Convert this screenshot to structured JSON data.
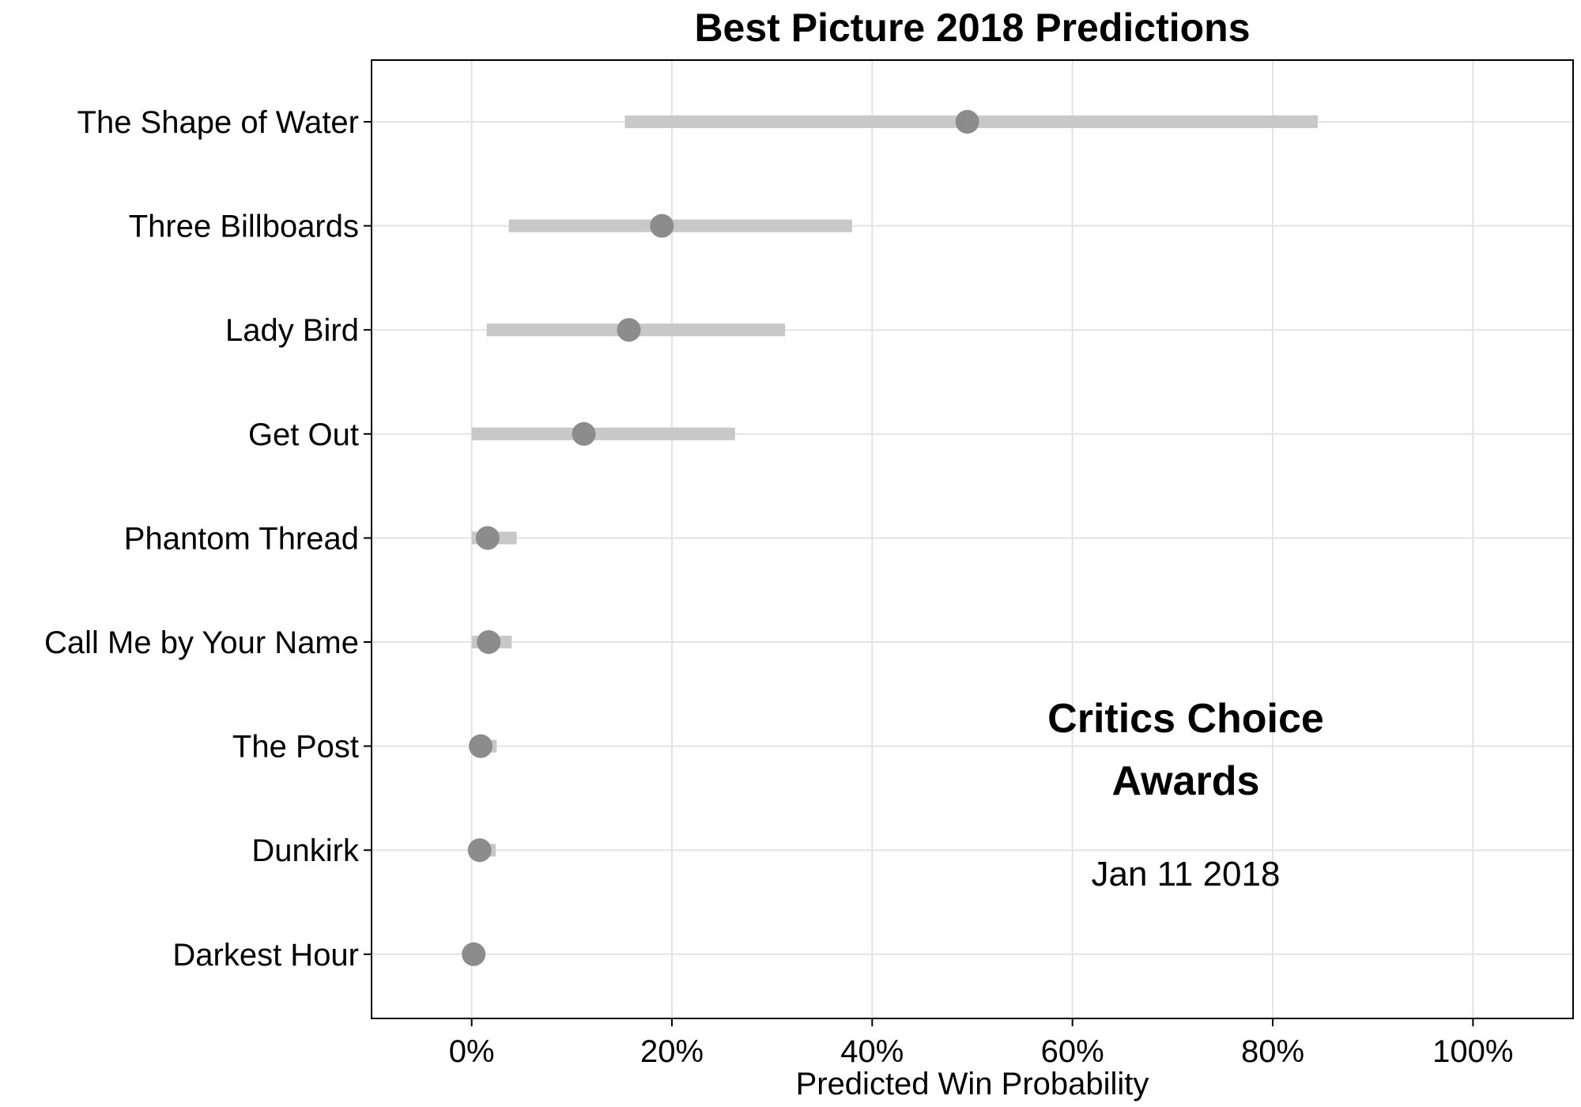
{
  "chart_data": {
    "type": "scatter",
    "title": "Best Picture 2018 Predictions",
    "xlabel": "Predicted Win Probability",
    "ylabel": "",
    "xlim": [
      -0.1,
      1.1
    ],
    "x_ticks": [
      0,
      0.2,
      0.4,
      0.6,
      0.8,
      1.0
    ],
    "x_tick_labels": [
      "0%",
      "20%",
      "40%",
      "60%",
      "80%",
      "100%"
    ],
    "grid": true,
    "categories": [
      "The Shape of Water",
      "Three Billboards",
      "Lady Bird",
      "Get Out",
      "Phantom Thread",
      "Call Me by Your Name",
      "The Post",
      "Dunkirk",
      "Darkest Hour"
    ],
    "values": [
      0.495,
      0.19,
      0.157,
      0.112,
      0.016,
      0.017,
      0.009,
      0.008,
      0.002
    ],
    "interval_low": [
      0.153,
      0.037,
      0.015,
      0.0,
      0.0,
      0.0,
      0.0,
      0.0,
      0.0
    ],
    "interval_high": [
      0.845,
      0.38,
      0.313,
      0.263,
      0.045,
      0.04,
      0.025,
      0.024,
      0.005
    ],
    "annotation": {
      "lines": [
        "Critics Choice",
        "Awards"
      ],
      "date": "Jan 11 2018"
    },
    "colors": {
      "point": "#8c8c8c",
      "interval": "#c8c8c8",
      "grid": "#e3e3e3",
      "axis": "#000000"
    }
  }
}
